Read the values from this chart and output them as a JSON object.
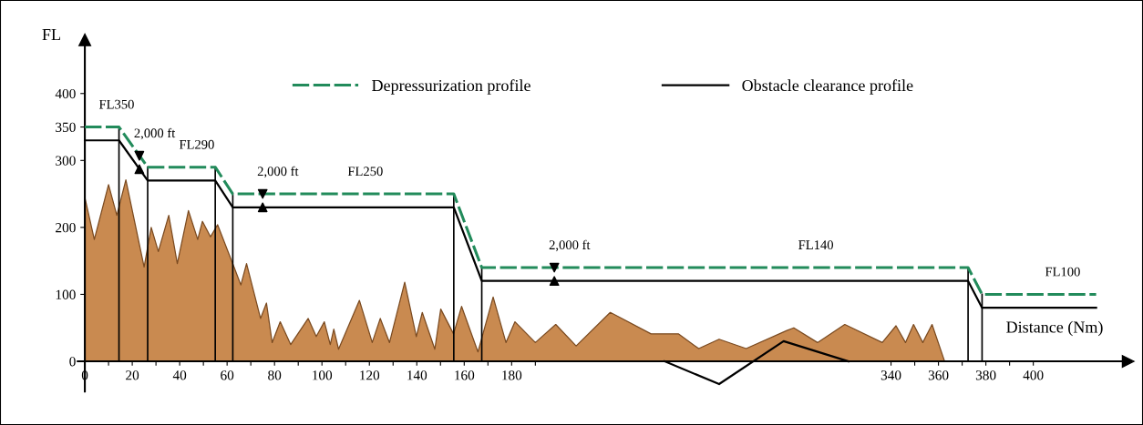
{
  "chart_data": {
    "type": "line",
    "xlabel": "Distance (Nm)",
    "ylabel": "FL",
    "xlim": [
      -3,
      440
    ],
    "ylim": [
      -45,
      480
    ],
    "xticks": [
      0,
      {
        "value": 10,
        "label": null
      },
      20,
      {
        "value": 30,
        "label": null
      },
      40,
      {
        "value": 50,
        "label": null
      },
      60,
      {
        "value": 70,
        "label": null
      },
      80,
      {
        "value": 90,
        "label": null
      },
      100,
      {
        "value": 110,
        "label": null
      },
      120,
      {
        "value": 130,
        "label": null
      },
      140,
      {
        "value": 150,
        "label": null
      },
      160,
      {
        "value": 170,
        "label": null
      },
      180,
      {
        "value": 190,
        "label": null
      },
      340,
      {
        "value": 350,
        "label": null
      },
      360,
      {
        "value": 370,
        "label": null
      },
      380,
      {
        "value": 390,
        "label": null
      },
      400
    ],
    "yticks": [
      0,
      100,
      200,
      300,
      350,
      400
    ],
    "grid": false,
    "legend": "top",
    "series": [
      {
        "type": "area",
        "color": "#c98a50",
        "x": [
          0,
          4,
          10,
          13.5,
          17.3,
          25,
          28,
          31,
          35.4,
          39,
          43.7,
          47.6,
          49.6,
          53,
          56,
          62.9,
          65.8,
          68.2,
          74.1,
          76.6,
          79,
          82.4,
          86.8,
          94.2,
          97.6,
          101,
          103.5,
          105,
          107,
          115.8,
          121.2,
          124.6,
          128.5,
          134.9,
          139.8,
          142.3,
          147.6,
          150.1,
          155.5,
          158.9,
          165.8,
          172.2,
          177.6,
          181.4,
          190,
          198.6,
          207.2,
          221.6,
          238.8,
          250.3,
          258.9,
          267.5,
          278.9,
          296.1,
          299,
          309,
          320.5,
          336.3,
          342.1,
          346.1,
          349.5,
          353.4,
          357.3,
          362.6
        ],
        "values": [
          245,
          182,
          264,
          218,
          271,
          141,
          200,
          164,
          218,
          146,
          225,
          182,
          209,
          186,
          204,
          141,
          114,
          146,
          64,
          87,
          28,
          59,
          25,
          64,
          37,
          59,
          25,
          48,
          18,
          91,
          28,
          64,
          28,
          118,
          37,
          73,
          18,
          78,
          41,
          82,
          14,
          96,
          28,
          59,
          28,
          55,
          23,
          73,
          41,
          41,
          19,
          33,
          19,
          46,
          50,
          28,
          55,
          28,
          53,
          28,
          55,
          28,
          55,
          0
        ]
      },
      {
        "type": "line",
        "color": "#000000",
        "x": [
          244.5,
          267.5,
          294.7,
          322
        ],
        "values": [
          0,
          -34,
          30,
          0
        ]
      },
      {
        "name": "Depressurization profile",
        "color": "#228b5b",
        "line_style": "dashed",
        "x": [
          0,
          14.4,
          26.5,
          55,
          62.4,
          155.6,
          167.4,
          372.5,
          378.4,
          426.5
        ],
        "values": [
          350,
          350,
          290,
          290,
          250,
          250,
          140,
          140,
          100,
          100
        ]
      },
      {
        "name": "Obstacle clearance profile",
        "color": "#000000",
        "line_style": "solid",
        "x": [
          0,
          14.4,
          26.5,
          55,
          62.4,
          155.6,
          167.4,
          372.5,
          378.4,
          426.5
        ],
        "values": [
          330,
          330,
          270,
          270,
          230,
          230,
          120,
          120,
          80,
          80
        ]
      },
      {
        "type": "scatter",
        "color": "#000000",
        "marker": "triangle_down",
        "x": [
          23,
          75,
          198
        ],
        "values": [
          307,
          250,
          140
        ]
      },
      {
        "type": "scatter",
        "color": "#000000",
        "marker": "triangle",
        "x": [
          23,
          75,
          198
        ],
        "values": [
          287,
          230,
          120
        ]
      }
    ],
    "ref_lines": [
      {
        "axis": "x",
        "value": 14.4,
        "color": "#000000"
      },
      {
        "axis": "x",
        "value": 26.5,
        "color": "#000000"
      },
      {
        "axis": "x",
        "value": 55,
        "color": "#000000"
      },
      {
        "axis": "x",
        "value": 62.4,
        "color": "#000000"
      },
      {
        "axis": "x",
        "value": 155.6,
        "color": "#000000"
      },
      {
        "axis": "x",
        "value": 167.4,
        "color": "#000000"
      },
      {
        "axis": "x",
        "value": 372.5,
        "color": "#000000"
      },
      {
        "axis": "x",
        "value": 378.4,
        "color": "#000000"
      }
    ],
    "annotations": [
      {
        "text": "FL350",
        "x": 7,
        "y": 350
      },
      {
        "text": "FL290",
        "x": 40.8,
        "y": 290
      },
      {
        "text": "FL250",
        "x": 111.9,
        "y": 250
      },
      {
        "text": "FL140",
        "x": 301.9,
        "y": 140
      },
      {
        "text": "FL100",
        "x": 406,
        "y": 100
      },
      {
        "text": "2,000 ft",
        "x": 23,
        "y": 307
      },
      {
        "text": "2,000 ft",
        "x": 75,
        "y": 250
      },
      {
        "text": "2,000 ft",
        "x": 198,
        "y": 140
      }
    ]
  }
}
